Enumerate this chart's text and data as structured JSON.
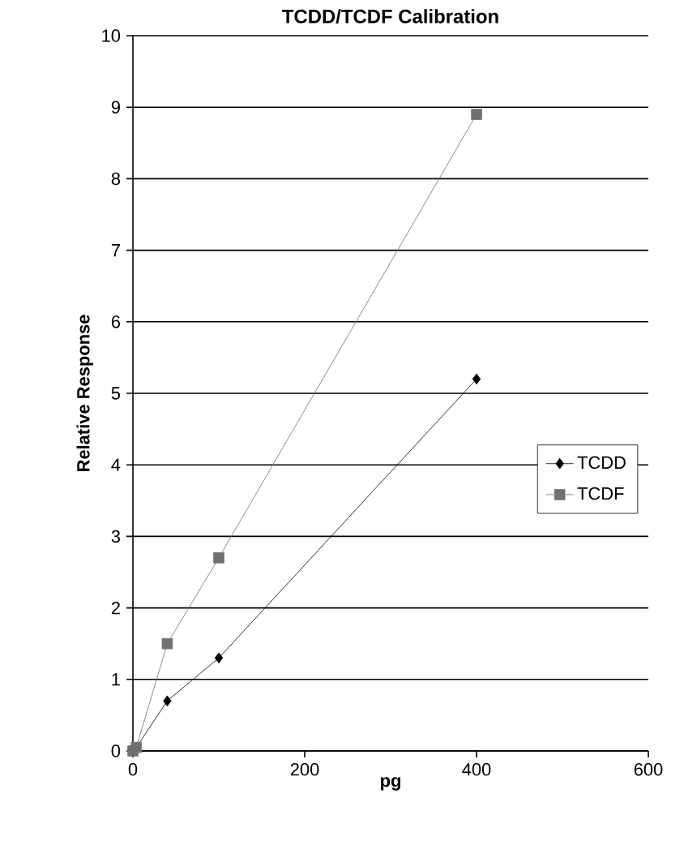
{
  "chart_data": {
    "type": "line",
    "title": "TCDD/TCDF Calibration",
    "xlabel": "pg",
    "ylabel": "Relative Response",
    "x": [
      0,
      4,
      40,
      100,
      400
    ],
    "series": [
      {
        "name": "TCDD",
        "color": "#000000",
        "marker": "diamond",
        "values": [
          0,
          0.05,
          0.7,
          1.3,
          5.2
        ]
      },
      {
        "name": "TCDF",
        "color": "#707070",
        "marker": "square",
        "values": [
          0,
          0.05,
          1.5,
          2.7,
          8.9
        ]
      }
    ],
    "xlim": [
      0,
      600
    ],
    "xticks": [
      0,
      200,
      400,
      600
    ],
    "ylim": [
      0,
      10
    ],
    "yticks": [
      0,
      1,
      2,
      3,
      4,
      5,
      6,
      7,
      8,
      9,
      10
    ],
    "grid": "y",
    "legend": "right"
  }
}
